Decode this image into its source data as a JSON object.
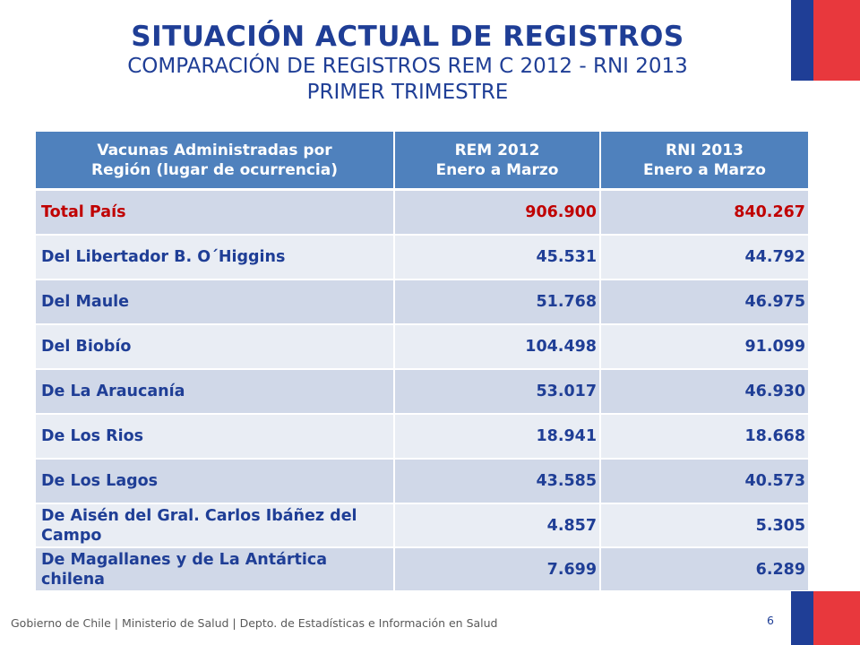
{
  "colors": {
    "brand_blue": "#1f3e96",
    "brand_red": "#e8383d",
    "header_bg": "#4f81bd",
    "total_red": "#c00000"
  },
  "title": "SITUACIÓN ACTUAL DE REGISTROS",
  "subtitle_1": "COMPARACIÓN DE REGISTROS REM C 2012 - RNI 2013",
  "subtitle_2": "PRIMER TRIMESTRE",
  "table": {
    "headers": [
      [
        "Vacunas Administradas por",
        "Región (lugar de ocurrencia)"
      ],
      [
        "REM 2012",
        "Enero a Marzo"
      ],
      [
        "RNI 2013",
        "Enero a Marzo"
      ]
    ],
    "rows": [
      {
        "region": "Total País",
        "rem_2012": "906.900",
        "rni_2013": "840.267"
      },
      {
        "region": "Del Libertador B. O´Higgins",
        "rem_2012": "45.531",
        "rni_2013": "44.792"
      },
      {
        "region": "Del Maule",
        "rem_2012": "51.768",
        "rni_2013": "46.975"
      },
      {
        "region": "Del Biobío",
        "rem_2012": "104.498",
        "rni_2013": "91.099"
      },
      {
        "region": "De La Araucanía",
        "rem_2012": "53.017",
        "rni_2013": "46.930"
      },
      {
        "region": "De Los Rios",
        "rem_2012": "18.941",
        "rni_2013": "18.668"
      },
      {
        "region": "De Los Lagos",
        "rem_2012": "43.585",
        "rni_2013": "40.573"
      },
      {
        "region": "De Aisén del Gral. Carlos Ibáñez del Campo",
        "rem_2012": "4.857",
        "rni_2013": "5.305"
      },
      {
        "region": "De Magallanes y de La Antártica chilena",
        "rem_2012": "7.699",
        "rni_2013": "6.289"
      }
    ]
  },
  "footer": "Gobierno de Chile | Ministerio de Salud | Depto. de Estadísticas e Información en Salud",
  "page_number": "6"
}
